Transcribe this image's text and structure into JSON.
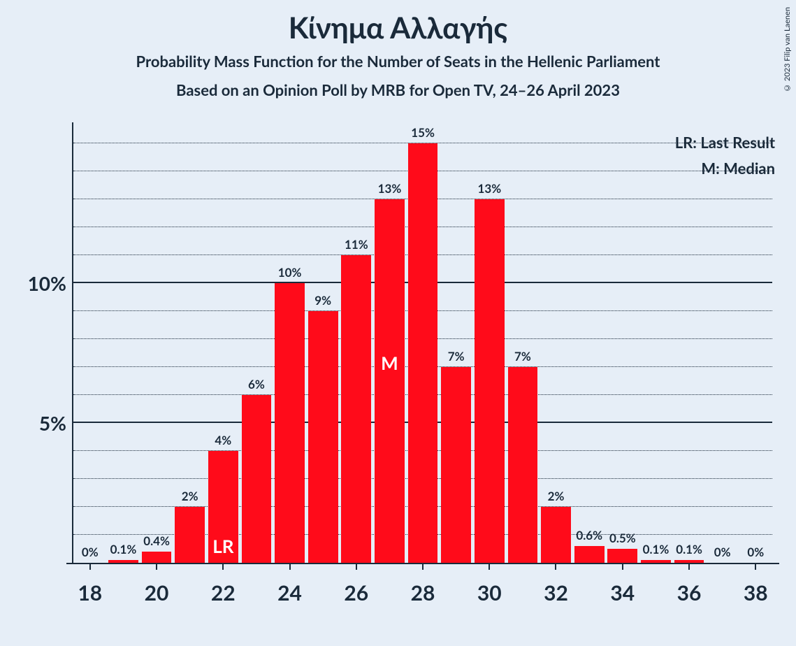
{
  "title": "Κίνημα Αλλαγής",
  "subtitle1": "Probability Mass Function for the Number of Seats in the Hellenic Parliament",
  "subtitle2": "Based on an Opinion Poll by MRB for Open TV, 24–26 April 2023",
  "copyright": "© 2023 Filip van Laenen",
  "legend": {
    "lr": "LR: Last Result",
    "m": "M: Median"
  },
  "chart": {
    "type": "bar",
    "bar_color": "#ff0b1a",
    "background_color": "#e6eef7",
    "text_color": "#1a2a3a",
    "grid_color": "#1a2a3a",
    "title_fontsize": 42,
    "subtitle_fontsize": 22,
    "axis_label_fontsize": 28,
    "x_tick_fontsize": 30,
    "bar_label_fontsize": 17,
    "marker_fontsize": 26,
    "ylim": [
      0,
      15.5
    ],
    "y_major_ticks": [
      5,
      10
    ],
    "y_minor_step": 1,
    "x_start": 18,
    "x_end": 38,
    "x_tick_step": 2,
    "bars": [
      {
        "x": 18,
        "value": 0,
        "label": "0%"
      },
      {
        "x": 19,
        "value": 0.1,
        "label": "0.1%"
      },
      {
        "x": 20,
        "value": 0.4,
        "label": "0.4%"
      },
      {
        "x": 21,
        "value": 2,
        "label": "2%"
      },
      {
        "x": 22,
        "value": 4,
        "label": "4%",
        "marker": "LR"
      },
      {
        "x": 23,
        "value": 6,
        "label": "6%"
      },
      {
        "x": 24,
        "value": 10,
        "label": "10%"
      },
      {
        "x": 25,
        "value": 9,
        "label": "9%"
      },
      {
        "x": 26,
        "value": 11,
        "label": "11%"
      },
      {
        "x": 27,
        "value": 13,
        "label": "13%",
        "marker": "M"
      },
      {
        "x": 28,
        "value": 15,
        "label": "15%"
      },
      {
        "x": 29,
        "value": 7,
        "label": "7%"
      },
      {
        "x": 30,
        "value": 13,
        "label": "13%"
      },
      {
        "x": 31,
        "value": 7,
        "label": "7%"
      },
      {
        "x": 32,
        "value": 2,
        "label": "2%"
      },
      {
        "x": 33,
        "value": 0.6,
        "label": "0.6%"
      },
      {
        "x": 34,
        "value": 0.5,
        "label": "0.5%"
      },
      {
        "x": 35,
        "value": 0.1,
        "label": "0.1%"
      },
      {
        "x": 36,
        "value": 0.1,
        "label": "0.1%"
      },
      {
        "x": 37,
        "value": 0,
        "label": "0%"
      },
      {
        "x": 38,
        "value": 0,
        "label": "0%"
      }
    ]
  }
}
